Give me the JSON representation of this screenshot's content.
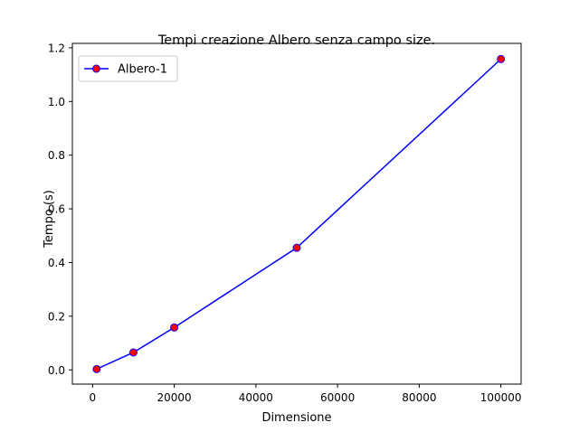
{
  "chart_data": {
    "type": "line",
    "title": "Tempi creazione Albero senza campo size.",
    "xlabel": "Dimensione",
    "ylabel": "Tempo (s)",
    "xlim": [
      -4950,
      104950
    ],
    "ylim": [
      -0.053,
      1.2165
    ],
    "xticks": [
      0,
      20000,
      40000,
      60000,
      80000,
      100000
    ],
    "xtick_labels": [
      "0",
      "20000",
      "40000",
      "60000",
      "80000",
      "100000"
    ],
    "yticks": [
      0.0,
      0.2,
      0.4,
      0.6,
      0.8,
      1.0,
      1.2
    ],
    "ytick_labels": [
      "0.0",
      "0.2",
      "0.4",
      "0.6",
      "0.8",
      "1.0",
      "1.2"
    ],
    "grid": false,
    "legend_position": "top-left",
    "series": [
      {
        "name": "Albero-1",
        "line_color": "#0000ff",
        "marker_face": "#ff0000",
        "marker_edge": "#0000ff",
        "x": [
          1000,
          10000,
          20000,
          50000,
          100000
        ],
        "y": [
          0.003,
          0.065,
          0.158,
          0.455,
          1.158
        ]
      }
    ]
  }
}
